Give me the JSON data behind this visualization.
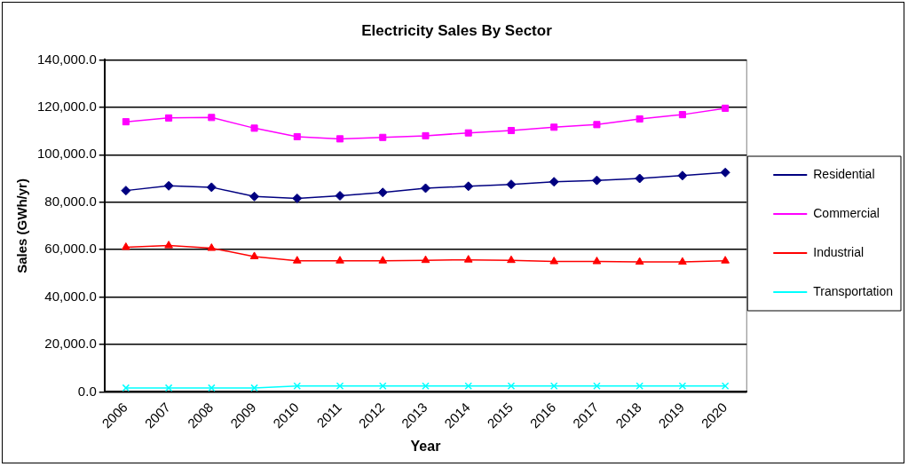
{
  "chart_data": {
    "type": "line",
    "title": "Electricity Sales By Sector",
    "xlabel": "Year",
    "ylabel": "Sales (GWh/yr)",
    "categories": [
      "2006",
      "2007",
      "2008",
      "2009",
      "2010",
      "2011",
      "2012",
      "2013",
      "2014",
      "2015",
      "2016",
      "2017",
      "2018",
      "2019",
      "2020"
    ],
    "series": [
      {
        "name": "Residential",
        "color": "#000080",
        "marker": "diamond",
        "values": [
          84900,
          86900,
          86300,
          82400,
          81600,
          82700,
          84100,
          85900,
          86700,
          87500,
          88600,
          89200,
          90000,
          91200,
          92500
        ]
      },
      {
        "name": "Commercial",
        "color": "#ff00ff",
        "marker": "square",
        "values": [
          113900,
          115500,
          115700,
          111200,
          107600,
          106700,
          107300,
          108000,
          109200,
          110200,
          111600,
          112700,
          115100,
          116900,
          119600
        ]
      },
      {
        "name": "Industrial",
        "color": "#ff0000",
        "marker": "triangle",
        "values": [
          61000,
          61700,
          60600,
          57100,
          55300,
          55300,
          55300,
          55500,
          55700,
          55500,
          55000,
          55000,
          54800,
          54800,
          55300
        ]
      },
      {
        "name": "Transportation",
        "color": "#00ffff",
        "marker": "cross",
        "values": [
          1700,
          1700,
          1700,
          1700,
          2500,
          2500,
          2500,
          2500,
          2500,
          2500,
          2500,
          2500,
          2500,
          2500,
          2500
        ]
      }
    ],
    "ylim": [
      0,
      140000
    ],
    "yticks": [
      {
        "value": 0,
        "label": "0.0"
      },
      {
        "value": 20000,
        "label": "20,000.0"
      },
      {
        "value": 40000,
        "label": "40,000.0"
      },
      {
        "value": 60000,
        "label": "60,000.0"
      },
      {
        "value": 80000,
        "label": "80,000.0"
      },
      {
        "value": 100000,
        "label": "100,000.0"
      },
      {
        "value": 120000,
        "label": "120,000.0"
      },
      {
        "value": 140000,
        "label": "140,000.0"
      }
    ],
    "grid": "y",
    "legend": "right",
    "line_style": "solid"
  }
}
